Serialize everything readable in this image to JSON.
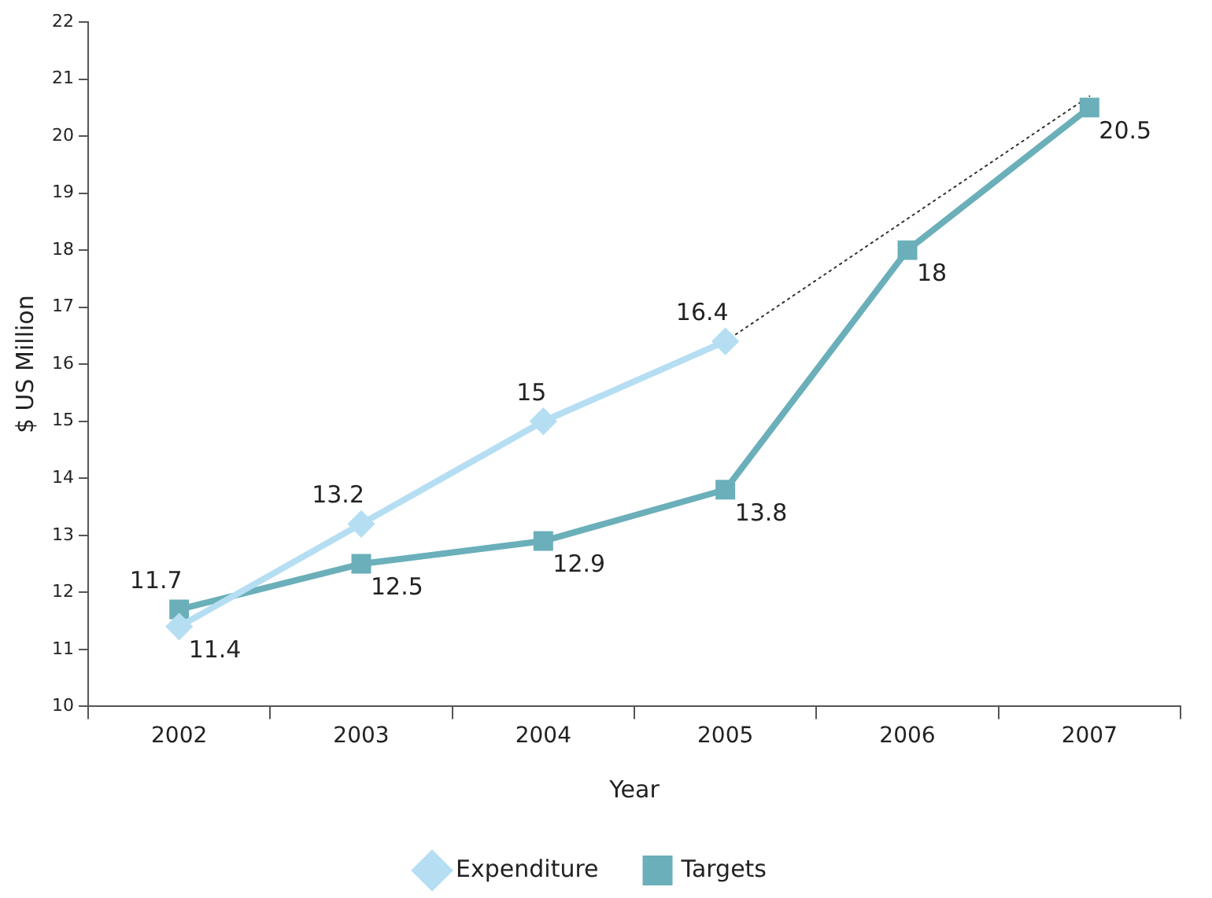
{
  "chart_data": {
    "type": "line",
    "xlabel": "Year",
    "ylabel": "$ US Million",
    "categories": [
      "2002",
      "2003",
      "2004",
      "2005",
      "2006",
      "2007"
    ],
    "series": [
      {
        "name": "Expenditure",
        "color": "#b5def3",
        "values": [
          11.4,
          13.2,
          15,
          16.4,
          null,
          null
        ],
        "marker": "diamond"
      },
      {
        "name": "Targets",
        "color": "#6aafb9",
        "values": [
          11.7,
          12.5,
          12.9,
          13.8,
          18,
          20.5
        ],
        "marker": "square"
      },
      {
        "type": "line",
        "color": "#333333",
        "values": [
          null,
          null,
          null,
          16.4,
          null,
          20.7
        ],
        "marker": "none",
        "line_style": "dotted",
        "value_labels": [
          null,
          null,
          null,
          null,
          null,
          null
        ]
      }
    ],
    "ylim": [
      10,
      22
    ],
    "yticks": [
      10,
      11,
      12,
      13,
      14,
      15,
      16,
      17,
      18,
      19,
      20,
      21,
      22
    ],
    "grid": false,
    "legend": "bottom",
    "data_labels": true
  }
}
